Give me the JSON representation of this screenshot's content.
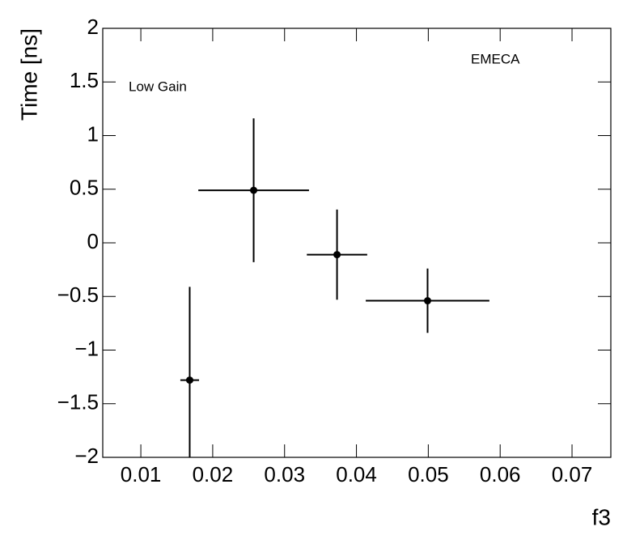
{
  "chart_data": {
    "type": "scatter",
    "x_label": "f3",
    "y_label": "Time [ns]",
    "annotations": [
      "EMECA",
      "Low Gain"
    ],
    "series": [
      {
        "color": "#000000",
        "x": [
          0.0168,
          0.0257,
          0.0373,
          0.0499
        ],
        "x_errors": [
          0.0013,
          0.0077,
          0.0042,
          0.0086
        ],
        "values": [
          -1.28,
          0.49,
          -0.11,
          -0.54
        ],
        "y_errors": [
          0.87,
          0.67,
          0.42,
          0.3
        ]
      }
    ],
    "xlim": [
      0.0047,
      0.0754
    ],
    "xticks": [
      0.01,
      0.02,
      0.03,
      0.04,
      0.05,
      0.06,
      0.07
    ],
    "ylim": [
      -2,
      2
    ],
    "yticks": [
      {
        "value": -2,
        "label": "−2"
      },
      {
        "value": -1.5,
        "label": "−1.5"
      },
      {
        "value": -1,
        "label": "−1"
      },
      {
        "value": -0.5,
        "label": "−0.5"
      },
      0,
      0.5,
      1,
      1.5,
      2
    ],
    "grid": false
  }
}
